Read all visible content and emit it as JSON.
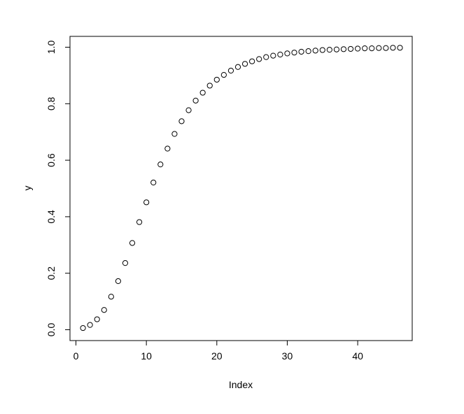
{
  "chart_data": {
    "type": "scatter",
    "title": "",
    "xlabel": "Index",
    "ylabel": "y",
    "xlim": [
      0,
      46
    ],
    "ylim": [
      0,
      1
    ],
    "x_ticks": [
      0,
      10,
      20,
      30,
      40
    ],
    "x_tick_labels": [
      "0",
      "10",
      "20",
      "30",
      "40"
    ],
    "y_ticks": [
      0,
      0.2,
      0.4,
      0.6,
      0.8,
      1.0
    ],
    "y_tick_labels": [
      "0.0",
      "0.2",
      "0.4",
      "0.6",
      "0.8",
      "1.0"
    ],
    "grid": false,
    "legend": "none",
    "marker": "open-circle",
    "colors": {
      "points": "#000000",
      "axes": "#000000",
      "background": "#ffffff"
    },
    "series": [
      {
        "x": [
          1,
          2,
          3,
          4,
          5,
          6,
          7,
          8,
          9,
          10,
          11,
          12,
          13,
          14,
          15,
          16,
          17,
          18,
          19,
          20,
          21,
          22,
          23,
          24,
          25,
          26,
          27,
          28,
          29,
          30,
          31,
          32,
          33,
          34,
          35,
          36,
          37,
          38,
          39,
          40,
          41,
          42,
          43,
          44,
          45,
          46
        ],
        "y": [
          0.006,
          0.017,
          0.037,
          0.07,
          0.117,
          0.172,
          0.236,
          0.307,
          0.381,
          0.451,
          0.521,
          0.585,
          0.641,
          0.693,
          0.738,
          0.777,
          0.811,
          0.839,
          0.864,
          0.885,
          0.902,
          0.917,
          0.93,
          0.941,
          0.95,
          0.958,
          0.965,
          0.97,
          0.974,
          0.978,
          0.981,
          0.984,
          0.986,
          0.988,
          0.99,
          0.991,
          0.992,
          0.993,
          0.994,
          0.995,
          0.996,
          0.996,
          0.997,
          0.997,
          0.998,
          0.998
        ]
      }
    ]
  }
}
